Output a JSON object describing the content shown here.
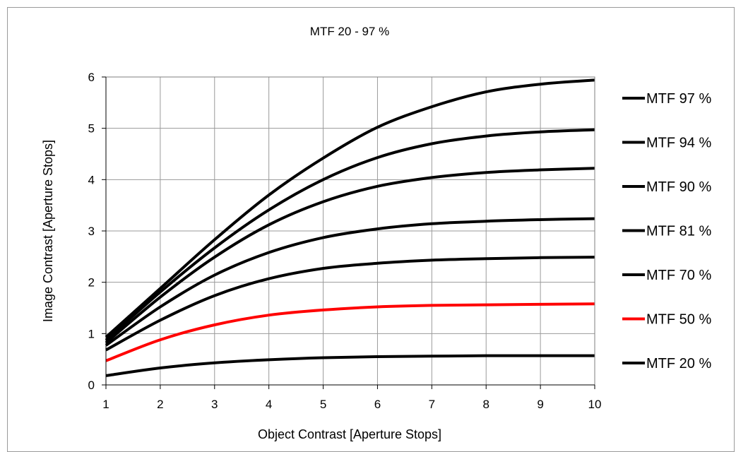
{
  "chart_data": {
    "type": "line",
    "title": "MTF 20 - 97 %",
    "xlabel": "Object Contrast [Aperture Stops]",
    "ylabel": "Image Contrast [Aperture Stops]",
    "xlim": [
      1,
      10
    ],
    "ylim": [
      0,
      6
    ],
    "xticks": [
      "1",
      "2",
      "3",
      "4",
      "5",
      "6",
      "7",
      "8",
      "9",
      "10"
    ],
    "yticks": [
      "0",
      "1",
      "2",
      "3",
      "4",
      "5",
      "6"
    ],
    "grid": true,
    "legend_position": "right",
    "x": [
      1,
      2,
      3,
      4,
      5,
      6,
      7,
      8,
      9,
      10
    ],
    "series": [
      {
        "name": "MTF 97 %",
        "color": "#000000",
        "values": [
          0.93,
          1.88,
          2.83,
          3.7,
          4.42,
          5.02,
          5.42,
          5.71,
          5.86,
          5.94
        ]
      },
      {
        "name": "MTF 94 %",
        "color": "#000000",
        "values": [
          0.87,
          1.81,
          2.67,
          3.41,
          4.0,
          4.43,
          4.7,
          4.85,
          4.93,
          4.97
        ]
      },
      {
        "name": "MTF 90 %",
        "color": "#000000",
        "values": [
          0.82,
          1.71,
          2.49,
          3.12,
          3.57,
          3.87,
          4.04,
          4.14,
          4.19,
          4.22
        ]
      },
      {
        "name": "MTF 81 %",
        "color": "#000000",
        "values": [
          0.77,
          1.52,
          2.14,
          2.58,
          2.87,
          3.04,
          3.14,
          3.19,
          3.22,
          3.24
        ]
      },
      {
        "name": "MTF 70 %",
        "color": "#000000",
        "values": [
          0.68,
          1.26,
          1.74,
          2.07,
          2.27,
          2.37,
          2.43,
          2.46,
          2.48,
          2.49
        ]
      },
      {
        "name": "MTF 50 %",
        "color": "#ff0000",
        "values": [
          0.47,
          0.88,
          1.17,
          1.36,
          1.46,
          1.52,
          1.55,
          1.56,
          1.57,
          1.58
        ]
      },
      {
        "name": "MTF 20 %",
        "color": "#000000",
        "values": [
          0.18,
          0.33,
          0.43,
          0.49,
          0.53,
          0.55,
          0.56,
          0.57,
          0.57,
          0.57
        ]
      }
    ]
  }
}
